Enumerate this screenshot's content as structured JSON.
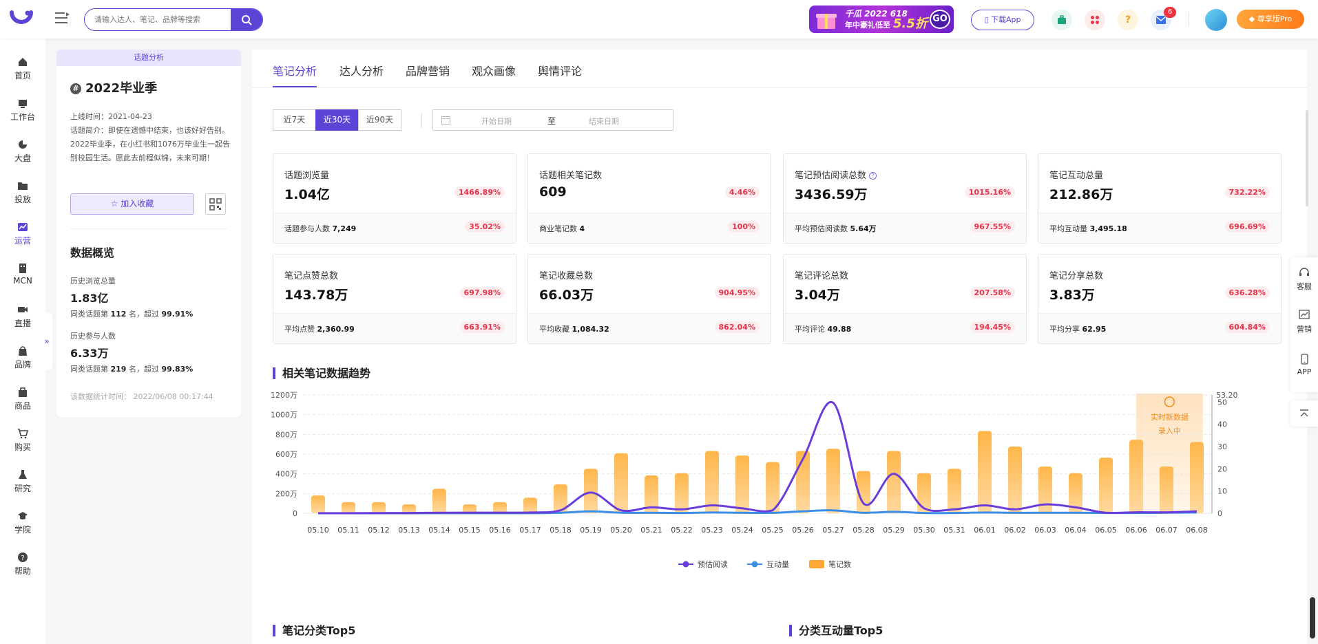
{
  "search": {
    "placeholder": "请输入达人、笔记、品牌等搜索"
  },
  "promo": {
    "line1": "千瓜 2022 618",
    "line2": "年中豪礼低至",
    "discount": "5.5折",
    "go": "GO"
  },
  "header": {
    "download_label": "下载App",
    "mail_badge": "6",
    "pro_label": "尊享版Pro"
  },
  "sidebar": {
    "items": [
      {
        "label": "首页",
        "icon": "home-icon"
      },
      {
        "label": "工作台",
        "icon": "workbench-icon"
      },
      {
        "label": "大盘",
        "icon": "pie-icon"
      },
      {
        "label": "投放",
        "icon": "folder-icon"
      },
      {
        "label": "运营",
        "icon": "chart-icon"
      },
      {
        "label": "MCN",
        "icon": "building-icon"
      },
      {
        "label": "直播",
        "icon": "video-icon"
      },
      {
        "label": "品牌",
        "icon": "brand-icon"
      },
      {
        "label": "商品",
        "icon": "bag-icon"
      },
      {
        "label": "购买",
        "icon": "cart-icon"
      },
      {
        "label": "研究",
        "icon": "flask-icon"
      },
      {
        "label": "学院",
        "icon": "cap-icon"
      },
      {
        "label": "帮助",
        "icon": "help-icon"
      }
    ],
    "active_index": 4,
    "expand_glyph": "»"
  },
  "left_panel": {
    "header": "话题分析",
    "title": "2022毕业季",
    "hash": "#",
    "online_time": "上线时间：2021-04-23",
    "intro": "话题简介：即使在遗憾中结束，也该好好告别。2022毕业季，在小红书和1076万毕业生一起告别校园生活。愿此去前程似锦，未来可期！",
    "fav_label": "☆ 加入收藏",
    "overview_title": "数据概览",
    "hist_views_label": "历史浏览总量",
    "hist_views_value": "1.83亿",
    "hist_views_rank_prefix": "同类话题第 ",
    "hist_views_rank": "112",
    "hist_views_rank_mid": " 名，超过 ",
    "hist_views_rank_pct": "99.91%",
    "hist_part_label": "历史参与人数",
    "hist_part_value": "6.33万",
    "hist_part_rank_prefix": "同类话题第 ",
    "hist_part_rank": "219",
    "hist_part_rank_mid": " 名，超过 ",
    "hist_part_rank_pct": "99.83%",
    "stat_time": "该数据统计时间： 2022/06/08 00:17:44"
  },
  "tabs": [
    "笔记分析",
    "达人分析",
    "品牌营销",
    "观众画像",
    "舆情评论"
  ],
  "ranges": [
    "近7天",
    "近30天",
    "近90天"
  ],
  "active_range": 1,
  "date_range": {
    "start": "开始日期",
    "sep": "至",
    "end": "结束日期"
  },
  "cards": [
    {
      "label": "话题浏览量",
      "value": "1.04亿",
      "pct": "1466.89%",
      "foot_label": "话题参与人数",
      "foot_value": "7,249",
      "foot_pct": "35.02%"
    },
    {
      "label": "话题相关笔记数",
      "value": "609",
      "pct": "4.46%",
      "foot_label": "商业笔记数",
      "foot_value": "4",
      "foot_pct": "100%"
    },
    {
      "label": "笔记预估阅读总数",
      "value": "3436.59万",
      "pct": "1015.16%",
      "foot_label": "平均预估阅读数",
      "foot_value": "5.64万",
      "foot_pct": "967.55%"
    },
    {
      "label": "笔记互动总量",
      "value": "212.86万",
      "pct": "732.22%",
      "foot_label": "平均互动量",
      "foot_value": "3,495.18",
      "foot_pct": "696.69%"
    },
    {
      "label": "笔记点赞总数",
      "value": "143.78万",
      "pct": "697.98%",
      "foot_label": "平均点赞",
      "foot_value": "2,360.99",
      "foot_pct": "663.91%"
    },
    {
      "label": "笔记收藏总数",
      "value": "66.03万",
      "pct": "904.95%",
      "foot_label": "平均收藏",
      "foot_value": "1,084.32",
      "foot_pct": "862.04%"
    },
    {
      "label": "笔记评论总数",
      "value": "3.04万",
      "pct": "207.58%",
      "foot_label": "平均评论",
      "foot_value": "49.88",
      "foot_pct": "194.45%"
    },
    {
      "label": "笔记分享总数",
      "value": "3.83万",
      "pct": "636.28%",
      "foot_label": "平均分享",
      "foot_value": "62.95",
      "foot_pct": "604.84%"
    }
  ],
  "trend_title": "相关笔记数据趋势",
  "bottom_titles": [
    "笔记分类Top5",
    "分类互动量Top5"
  ],
  "realtime_label": [
    "实时新数据",
    "录入中"
  ],
  "right_float": [
    {
      "label": "客服",
      "icon": "headset-icon"
    },
    {
      "label": "营销",
      "icon": "marketing-icon"
    },
    {
      "label": "APP",
      "icon": "phone-icon"
    }
  ],
  "colors": {
    "accent": "#5b44d6",
    "bar": "#ffa83a",
    "read_line": "#6a3ddb",
    "interact_line": "#3b8ee8",
    "pct_red": "#e8334a"
  },
  "chart_data": {
    "type": "bar",
    "categories": [
      "05.10",
      "05.11",
      "05.12",
      "05.13",
      "05.14",
      "05.15",
      "05.16",
      "05.17",
      "05.18",
      "05.19",
      "05.20",
      "05.21",
      "05.22",
      "05.23",
      "05.24",
      "05.25",
      "05.26",
      "05.27",
      "05.28",
      "05.29",
      "05.30",
      "05.31",
      "06.01",
      "06.02",
      "06.03",
      "06.04",
      "06.05",
      "06.06",
      "06.07",
      "06.08"
    ],
    "series": [
      {
        "name": "笔记数",
        "type": "bar",
        "axis": "right",
        "values": [
          8,
          5,
          5,
          4,
          11,
          4,
          5,
          7,
          13,
          20,
          27,
          17,
          18,
          28,
          26,
          23,
          28,
          29,
          19,
          28,
          18,
          20,
          37,
          30,
          21,
          18,
          25,
          33,
          21,
          32
        ]
      },
      {
        "name": "预估阅读",
        "type": "line",
        "axis": "left",
        "values": [
          1,
          1,
          2,
          3,
          5,
          6,
          6,
          8,
          30,
          210,
          30,
          60,
          40,
          80,
          50,
          30,
          550,
          1120,
          100,
          400,
          50,
          40,
          80,
          40,
          90,
          60,
          5,
          10,
          10,
          20
        ]
      },
      {
        "name": "互动量",
        "type": "line",
        "axis": "left",
        "values": [
          0,
          0,
          0,
          0,
          1,
          1,
          1,
          1,
          5,
          20,
          5,
          5,
          3,
          8,
          5,
          4,
          20,
          30,
          5,
          15,
          3,
          3,
          8,
          5,
          5,
          5,
          3,
          3,
          5,
          8
        ]
      }
    ],
    "left_axis": {
      "ticks": [
        "0",
        "200万",
        "400万",
        "600万",
        "800万",
        "1000万",
        "1200万"
      ],
      "max": 1200
    },
    "right_axis": {
      "ticks": [
        "0",
        "10",
        "20",
        "30",
        "40",
        "50"
      ],
      "max": 53.2,
      "max_label": "53.20"
    },
    "legend": [
      "预估阅读",
      "互动量",
      "笔记数"
    ]
  }
}
